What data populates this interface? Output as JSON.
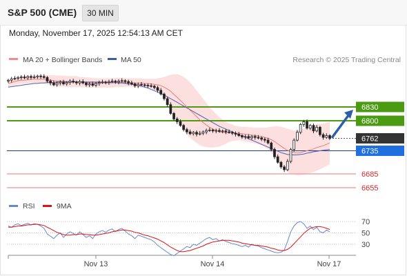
{
  "header": {
    "title": "S&P 500 (CME)",
    "interval": "30 MIN",
    "datetime": "Monday, November 17, 2025 12:54:13 AM CET"
  },
  "legend": {
    "items": [
      {
        "label": "MA 20 + Bollinger Bands",
        "color": "#f48a8a"
      },
      {
        "label": "MA 50",
        "color": "#3a5fa0"
      }
    ]
  },
  "copyright": "Research © 2025 Trading Central",
  "colors": {
    "resistance": "#4a9a12",
    "support": "#1f6fe0",
    "price": "#333333",
    "pivot_line": "#1a3f8a",
    "target_line": "#f2a3a3",
    "target_text": "#d42a2a",
    "up": "#ffffff",
    "down": "#222222",
    "band": "#fbdada",
    "arrow": "#2d5fa6"
  },
  "chart_data": [
    {
      "type": "candlestick",
      "y_scale": {
        "price_a": 6830,
        "price_b": 6655
      },
      "x_ticks": [
        "Nov 13",
        "Nov 14",
        "Nov 17"
      ],
      "levels": [
        {
          "value": 6830,
          "label": "6830",
          "kind": "resistance"
        },
        {
          "value": 6800,
          "label": "6800",
          "kind": "resistance"
        },
        {
          "value": 6762,
          "label": "6762",
          "kind": "price"
        },
        {
          "value": 6735,
          "label": "6735",
          "kind": "support"
        },
        {
          "value": 6685,
          "label": "6685",
          "kind": "target"
        },
        {
          "value": 6655,
          "label": "6655",
          "kind": "target"
        }
      ],
      "closes": [
        6888,
        6891,
        6892,
        6894,
        6895,
        6893,
        6896,
        6894,
        6895,
        6897,
        6896,
        6894,
        6886,
        6882,
        6878,
        6882,
        6884,
        6880,
        6883,
        6886,
        6884,
        6882,
        6885,
        6882,
        6878,
        6880,
        6877,
        6881,
        6883,
        6884,
        6883,
        6885,
        6886,
        6884,
        6886,
        6887,
        6885,
        6882,
        6880,
        6876,
        6879,
        6878,
        6877,
        6876,
        6875,
        6872,
        6866,
        6858,
        6848,
        6835,
        6816,
        6804,
        6798,
        6790,
        6781,
        6776,
        6772,
        6775,
        6771,
        6773,
        6776,
        6779,
        6780,
        6778,
        6779,
        6777,
        6778,
        6776,
        6775,
        6773,
        6771,
        6768,
        6765,
        6766,
        6763,
        6766,
        6764,
        6763,
        6760,
        6758,
        6752,
        6738,
        6722,
        6710,
        6700,
        6694,
        6712,
        6738,
        6758,
        6775,
        6792,
        6798,
        6784,
        6790,
        6778,
        6786,
        6770,
        6764,
        6768,
        6762
      ],
      "ma20": [
        6881,
        6883,
        6885,
        6887,
        6888,
        6888,
        6889,
        6890,
        6890,
        6890,
        6890,
        6890,
        6889,
        6888,
        6887,
        6886,
        6886,
        6886,
        6885,
        6885,
        6885,
        6885,
        6884,
        6884,
        6883,
        6883,
        6882,
        6882,
        6882,
        6882,
        6882,
        6882,
        6882,
        6883,
        6883,
        6883,
        6883,
        6883,
        6883,
        6882,
        6882,
        6882,
        6881,
        6881,
        6880,
        6879,
        6878,
        6876,
        6873,
        6869,
        6864,
        6857,
        6851,
        6844,
        6837,
        6830,
        6823,
        6816,
        6809,
        6802,
        6796,
        6791,
        6786,
        6782,
        6779,
        6776,
        6775,
        6774,
        6774,
        6774,
        6773,
        6773,
        6772,
        6771,
        6770,
        6769,
        6768,
        6767,
        6766,
        6764,
        6762,
        6759,
        6755,
        6750,
        6745,
        6740,
        6736,
        6733,
        6731,
        6730,
        6731,
        6733,
        6735,
        6737,
        6739,
        6742,
        6744,
        6746,
        6749,
        6752
      ],
      "bb_width": [
        7,
        7,
        8,
        8,
        8,
        8,
        8,
        8,
        8,
        8,
        8,
        9,
        10,
        11,
        12,
        12,
        12,
        12,
        12,
        12,
        12,
        12,
        11,
        11,
        11,
        11,
        10,
        10,
        10,
        10,
        10,
        10,
        10,
        10,
        10,
        10,
        9,
        9,
        9,
        10,
        10,
        10,
        10,
        10,
        11,
        12,
        14,
        17,
        22,
        28,
        36,
        44,
        50,
        55,
        58,
        60,
        60,
        59,
        57,
        55,
        52,
        48,
        44,
        40,
        36,
        32,
        28,
        24,
        20,
        18,
        16,
        15,
        15,
        16,
        16,
        17,
        17,
        18,
        19,
        21,
        24,
        28,
        33,
        38,
        42,
        45,
        47,
        48,
        48,
        48,
        49,
        50,
        50,
        50,
        50,
        50,
        49,
        48,
        47,
        46
      ],
      "ma50": [
        6873,
        6874,
        6875,
        6876,
        6877,
        6878,
        6879,
        6880,
        6881,
        6881,
        6882,
        6882,
        6883,
        6883,
        6883,
        6884,
        6884,
        6884,
        6884,
        6884,
        6884,
        6884,
        6884,
        6884,
        6884,
        6884,
        6884,
        6884,
        6884,
        6884,
        6884,
        6883,
        6883,
        6883,
        6882,
        6882,
        6881,
        6880,
        6879,
        6878,
        6877,
        6875,
        6873,
        6871,
        6868,
        6865,
        6862,
        6859,
        6856,
        6852,
        6848,
        6844,
        6840,
        6836,
        6832,
        6828,
        6824,
        6820,
        6816,
        6812,
        6808,
        6804,
        6800,
        6796,
        6792,
        6788,
        6785,
        6782,
        6779,
        6776,
        6773,
        6770,
        6767,
        6764,
        6761,
        6758,
        6755,
        6752,
        6749,
        6746,
        6743,
        6740,
        6737,
        6734,
        6731,
        6729,
        6727,
        6726,
        6726,
        6726,
        6727,
        6728,
        6730,
        6731,
        6733,
        6734,
        6735,
        6736,
        6737,
        6738
      ],
      "projection": {
        "from": 6762,
        "to": 6830
      }
    },
    {
      "type": "line",
      "legend": [
        {
          "label": "RSI",
          "color": "#6688cc"
        },
        {
          "label": "9MA",
          "color": "#e01010"
        }
      ],
      "ylim": [
        20,
        80
      ],
      "y_ticks": [
        70,
        50,
        30
      ],
      "rsi": [
        62,
        60,
        64,
        66,
        63,
        65,
        67,
        64,
        66,
        65,
        62,
        58,
        48,
        44,
        40,
        46,
        50,
        42,
        48,
        52,
        49,
        46,
        52,
        47,
        42,
        45,
        40,
        48,
        52,
        54,
        51,
        55,
        57,
        52,
        56,
        58,
        53,
        48,
        45,
        40,
        46,
        44,
        42,
        40,
        38,
        34,
        28,
        24,
        20,
        16,
        12,
        10,
        14,
        18,
        22,
        26,
        24,
        30,
        28,
        32,
        36,
        40,
        42,
        38,
        40,
        36,
        38,
        35,
        33,
        31,
        30,
        28,
        26,
        28,
        25,
        30,
        28,
        27,
        24,
        22,
        20,
        18,
        16,
        15,
        16,
        20,
        35,
        52,
        62,
        68,
        70,
        66,
        58,
        62,
        56,
        60,
        52,
        50,
        55,
        52
      ],
      "ma9": [
        60,
        60,
        61,
        62,
        62,
        63,
        64,
        64,
        65,
        65,
        64,
        63,
        60,
        57,
        54,
        51,
        49,
        47,
        46,
        46,
        47,
        47,
        48,
        48,
        47,
        47,
        46,
        46,
        47,
        48,
        49,
        50,
        52,
        53,
        54,
        55,
        55,
        54,
        53,
        51,
        50,
        48,
        46,
        45,
        43,
        41,
        39,
        36,
        33,
        29,
        25,
        22,
        19,
        17,
        17,
        18,
        19,
        21,
        23,
        25,
        27,
        30,
        32,
        34,
        35,
        36,
        37,
        37,
        37,
        36,
        35,
        34,
        32,
        31,
        30,
        29,
        28,
        28,
        27,
        26,
        25,
        23,
        22,
        20,
        19,
        19,
        21,
        25,
        31,
        37,
        43,
        49,
        54,
        58,
        60,
        61,
        61,
        60,
        58,
        56
      ]
    }
  ]
}
